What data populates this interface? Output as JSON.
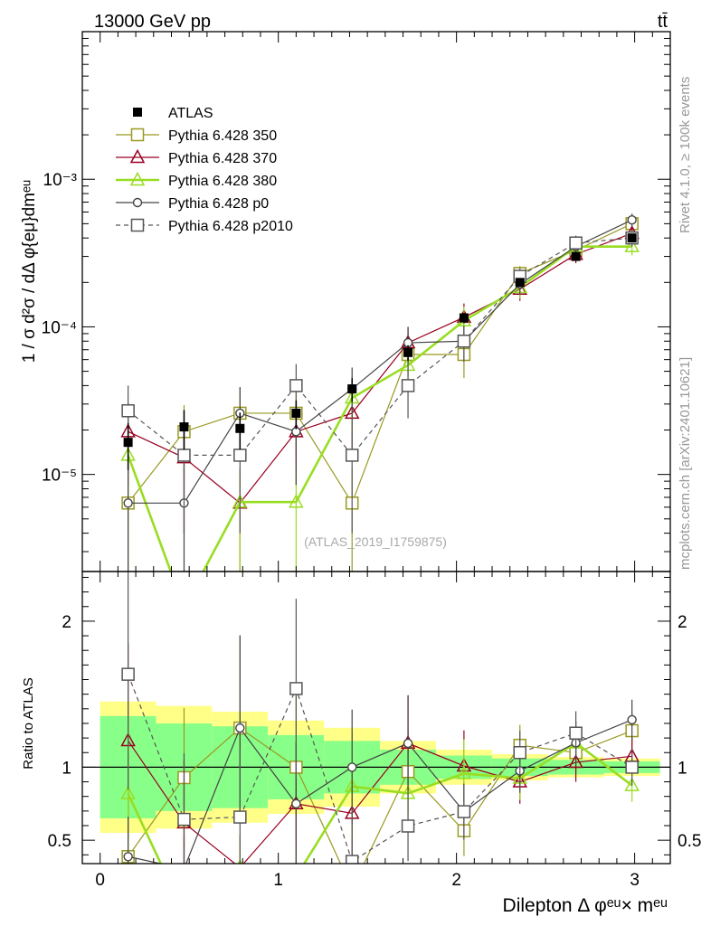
{
  "header": {
    "energy_label": "13000 GeV pp",
    "process_label": "tt̄"
  },
  "side_labels": {
    "rivet": "Rivet 4.1.0, ≥ 100k events",
    "mcplots": "mcplots.cern.ch [arXiv:2401.10621]"
  },
  "colors": {
    "atlas": "#000000",
    "p350": "#999922",
    "p370": "#990022",
    "p380": "#99dd22",
    "p0": "#444444",
    "p2010": "#555555",
    "band_outer": "#ffff88",
    "band_inner": "#88ff88"
  },
  "chart_data": {
    "type": "line",
    "analysis_label": "(ATLAS_2019_I1759875)",
    "ylabel": "1 / σ d²σ / dΔ φ{eμ}dmᵉᵘ",
    "ratio_ylabel": "Ratio to ATLAS",
    "xlabel": "Dilepton Δ φᵉᵘ× mᵉᵘ",
    "xlim": [
      -0.1,
      3.2
    ],
    "ylim": [
      2.2e-06,
      0.01
    ],
    "yscale": "log",
    "ratio_ylim": [
      0.34,
      2.34
    ],
    "x_ticks": [
      "0",
      "1",
      "2",
      "3"
    ],
    "y_ticks": [
      "10⁻⁵",
      "10⁻⁴",
      "10⁻³"
    ],
    "ratio_ticks": [
      "0.5",
      "1",
      "2"
    ],
    "x": [
      0.157,
      0.471,
      0.785,
      1.1,
      1.414,
      1.728,
      2.042,
      2.356,
      2.67,
      2.985
    ],
    "bin_edges": [
      0.0,
      0.314,
      0.628,
      0.942,
      1.257,
      1.571,
      1.885,
      2.199,
      2.513,
      2.827,
      3.142
    ],
    "reference": {
      "name": "ATLAS",
      "values": [
        1.65e-05,
        2.1e-05,
        2.05e-05,
        2.6e-05,
        3.8e-05,
        6.7e-05,
        0.000115,
        0.0002,
        0.0003,
        0.0004
      ],
      "rel_err": [
        0.35,
        0.3,
        0.28,
        0.22,
        0.18,
        0.12,
        0.08,
        0.06,
        0.05,
        0.04
      ],
      "rel_err_total": [
        0.45,
        0.42,
        0.38,
        0.32,
        0.27,
        0.18,
        0.12,
        0.09,
        0.07,
        0.06
      ]
    },
    "series": [
      {
        "name": "Pythia 6.428 350",
        "color_key": "p350",
        "marker": "square-open",
        "dashed": false,
        "values": [
          6.4e-06,
          1.95e-05,
          2.6e-05,
          2.6e-05,
          6.4e-06,
          6.5e-05,
          6.5e-05,
          0.00023,
          0.00033,
          0.0005
        ],
        "errors": [
          4.5e-06,
          1e-05,
          1.3e-05,
          1.3e-05,
          4.5e-06,
          1.9e-05,
          2e-05,
          2.8e-05,
          4e-05,
          5e-05
        ]
      },
      {
        "name": "Pythia 6.428 370",
        "color_key": "p370",
        "marker": "triangle-open",
        "dashed": false,
        "values": [
          1.95e-05,
          1.3e-05,
          6.4e-06,
          1.95e-05,
          2.6e-05,
          7.8e-05,
          0.000116,
          0.00018,
          0.00031,
          0.00043
        ],
        "errors": [
          1.1e-05,
          9e-06,
          4.5e-06,
          1.1e-05,
          1.2e-05,
          2.2e-05,
          2.8e-05,
          3e-05,
          4e-05,
          5e-05
        ]
      },
      {
        "name": "Pythia 6.428 380",
        "color_key": "p380",
        "marker": "triangle-open",
        "dashed": false,
        "thick": true,
        "values": [
          1.35e-05,
          0,
          6.5e-06,
          6.5e-06,
          3.3e-05,
          5.5e-05,
          0.00011,
          0.000185,
          0.00035,
          0.00035
        ],
        "errors": [
          9e-06,
          0,
          4.6e-06,
          4.6e-06,
          1.4e-05,
          1.8e-05,
          2.7e-05,
          3e-05,
          4.5e-05,
          4.5e-05
        ]
      },
      {
        "name": "Pythia 6.428 p0",
        "color_key": "p0",
        "marker": "circle-open",
        "dashed": false,
        "values": [
          6.4e-06,
          6.4e-06,
          2.6e-05,
          1.95e-05,
          3.8e-05,
          7.8e-05,
          8e-05,
          0.000195,
          0.00035,
          0.00053
        ],
        "errors": [
          4.5e-06,
          4.5e-06,
          1.3e-05,
          1.1e-05,
          1.5e-05,
          2.2e-05,
          2.2e-05,
          3e-05,
          4.5e-05,
          5.5e-05
        ]
      },
      {
        "name": "Pythia 6.428 p2010",
        "color_key": "p2010",
        "marker": "square-open",
        "dashed": true,
        "values": [
          2.7e-05,
          1.35e-05,
          1.35e-05,
          4e-05,
          1.35e-05,
          4e-05,
          8e-05,
          0.00022,
          0.00037,
          0.0004
        ],
        "errors": [
          1.3e-05,
          9.5e-06,
          9.5e-06,
          1.6e-05,
          9.5e-06,
          1.6e-05,
          2.2e-05,
          3e-05,
          4.5e-05,
          5e-05
        ]
      }
    ]
  }
}
